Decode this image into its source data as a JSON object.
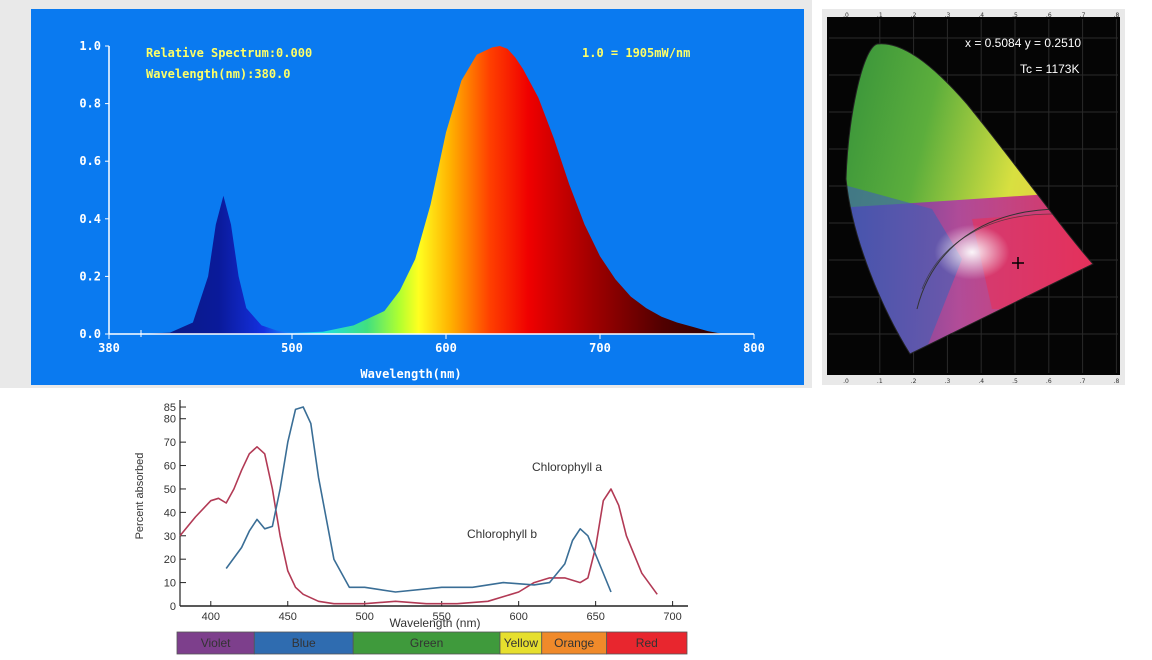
{
  "spectrum": {
    "label_relative": "Relative Spectrum:0.000",
    "label_wavelength": "Wavelength(nm):380.0",
    "label_scale": "1.0 = 1905mW/nm",
    "xlabel": "Wavelength(nm)",
    "colors": {
      "background": "#0a7af0",
      "text": "#ffff66",
      "axis": "#ffffff"
    }
  },
  "cie": {
    "readout_xy": "x = 0.5084 y = 0.2510",
    "readout_tc": "Tc = 1173K",
    "axis_ticks": [
      ".0",
      ".1",
      ".2",
      ".3",
      ".4",
      ".5",
      ".6",
      ".7",
      ".8"
    ],
    "marker": "crosshair"
  },
  "absorption": {
    "label_a": "Chlorophyll a",
    "label_b": "Chlorophyll b",
    "ylabel": "Percent absorbed",
    "xlabel": "Wavelength (nm)",
    "spectrum_bar": [
      {
        "label": "Violet",
        "color": "#7d3f8c"
      },
      {
        "label": "Blue",
        "color": "#2f6cb0"
      },
      {
        "label": "Green",
        "color": "#3f9a3c"
      },
      {
        "label": "Yellow",
        "color": "#e6df2e"
      },
      {
        "label": "Orange",
        "color": "#f08a2a"
      },
      {
        "label": "Red",
        "color": "#e8262e"
      }
    ]
  },
  "chart_data": [
    {
      "type": "area",
      "x": [
        380,
        400,
        420,
        435,
        445,
        450,
        455,
        460,
        465,
        470,
        480,
        490,
        500,
        520,
        540,
        560,
        570,
        580,
        590,
        600,
        610,
        620,
        630,
        635,
        640,
        645,
        650,
        660,
        670,
        680,
        690,
        700,
        710,
        720,
        730,
        740,
        750,
        760,
        770,
        780
      ],
      "values": [
        0,
        0,
        0.005,
        0.04,
        0.2,
        0.38,
        0.48,
        0.38,
        0.2,
        0.09,
        0.03,
        0.012,
        0.005,
        0.008,
        0.03,
        0.08,
        0.15,
        0.26,
        0.45,
        0.7,
        0.88,
        0.97,
        0.995,
        1.0,
        0.99,
        0.96,
        0.92,
        0.82,
        0.68,
        0.52,
        0.38,
        0.27,
        0.19,
        0.13,
        0.09,
        0.06,
        0.04,
        0.025,
        0.01,
        0
      ],
      "xlabel": "Wavelength(nm)",
      "xlim": [
        380,
        800
      ],
      "ylim": [
        0,
        1.0
      ],
      "x_ticks": [
        380,
        500,
        600,
        700,
        800
      ],
      "y_ticks": [
        "0.0",
        "0.2",
        "0.4",
        "0.6",
        "0.8",
        "1.0"
      ],
      "grid": false
    },
    {
      "type": "line",
      "xlabel": "Wavelength (nm)",
      "ylabel": "Percent absorbed",
      "xlim": [
        380,
        710
      ],
      "ylim": [
        0,
        88
      ],
      "x_ticks": [
        "400",
        "450",
        "500",
        "550",
        "600",
        "650",
        "700"
      ],
      "y_ticks": [
        "0",
        "10",
        "20",
        "30",
        "40",
        "50",
        "60",
        "70",
        "80",
        "85"
      ],
      "series": [
        {
          "name": "Chlorophyll a",
          "color": "#b23a55",
          "x": [
            380,
            390,
            400,
            405,
            410,
            415,
            420,
            425,
            430,
            435,
            440,
            445,
            450,
            455,
            460,
            470,
            480,
            490,
            500,
            520,
            540,
            560,
            580,
            600,
            610,
            620,
            630,
            640,
            645,
            650,
            655,
            660,
            665,
            670,
            680,
            690
          ],
          "y": [
            30,
            38,
            45,
            46,
            44,
            50,
            58,
            65,
            68,
            65,
            50,
            30,
            15,
            8,
            5,
            2,
            1,
            1,
            1,
            2,
            1,
            1,
            2,
            6,
            10,
            12,
            12,
            10,
            12,
            25,
            45,
            50,
            43,
            30,
            14,
            5
          ]
        },
        {
          "name": "Chlorophyll b",
          "color": "#3a6e96",
          "x": [
            410,
            420,
            425,
            430,
            435,
            440,
            445,
            450,
            455,
            460,
            465,
            470,
            480,
            490,
            500,
            520,
            550,
            570,
            590,
            610,
            620,
            630,
            635,
            640,
            645,
            650,
            660
          ],
          "y": [
            16,
            25,
            32,
            37,
            33,
            34,
            50,
            70,
            84,
            85,
            78,
            55,
            20,
            8,
            8,
            6,
            8,
            8,
            10,
            9,
            10,
            18,
            28,
            33,
            30,
            22,
            6
          ]
        }
      ]
    }
  ]
}
